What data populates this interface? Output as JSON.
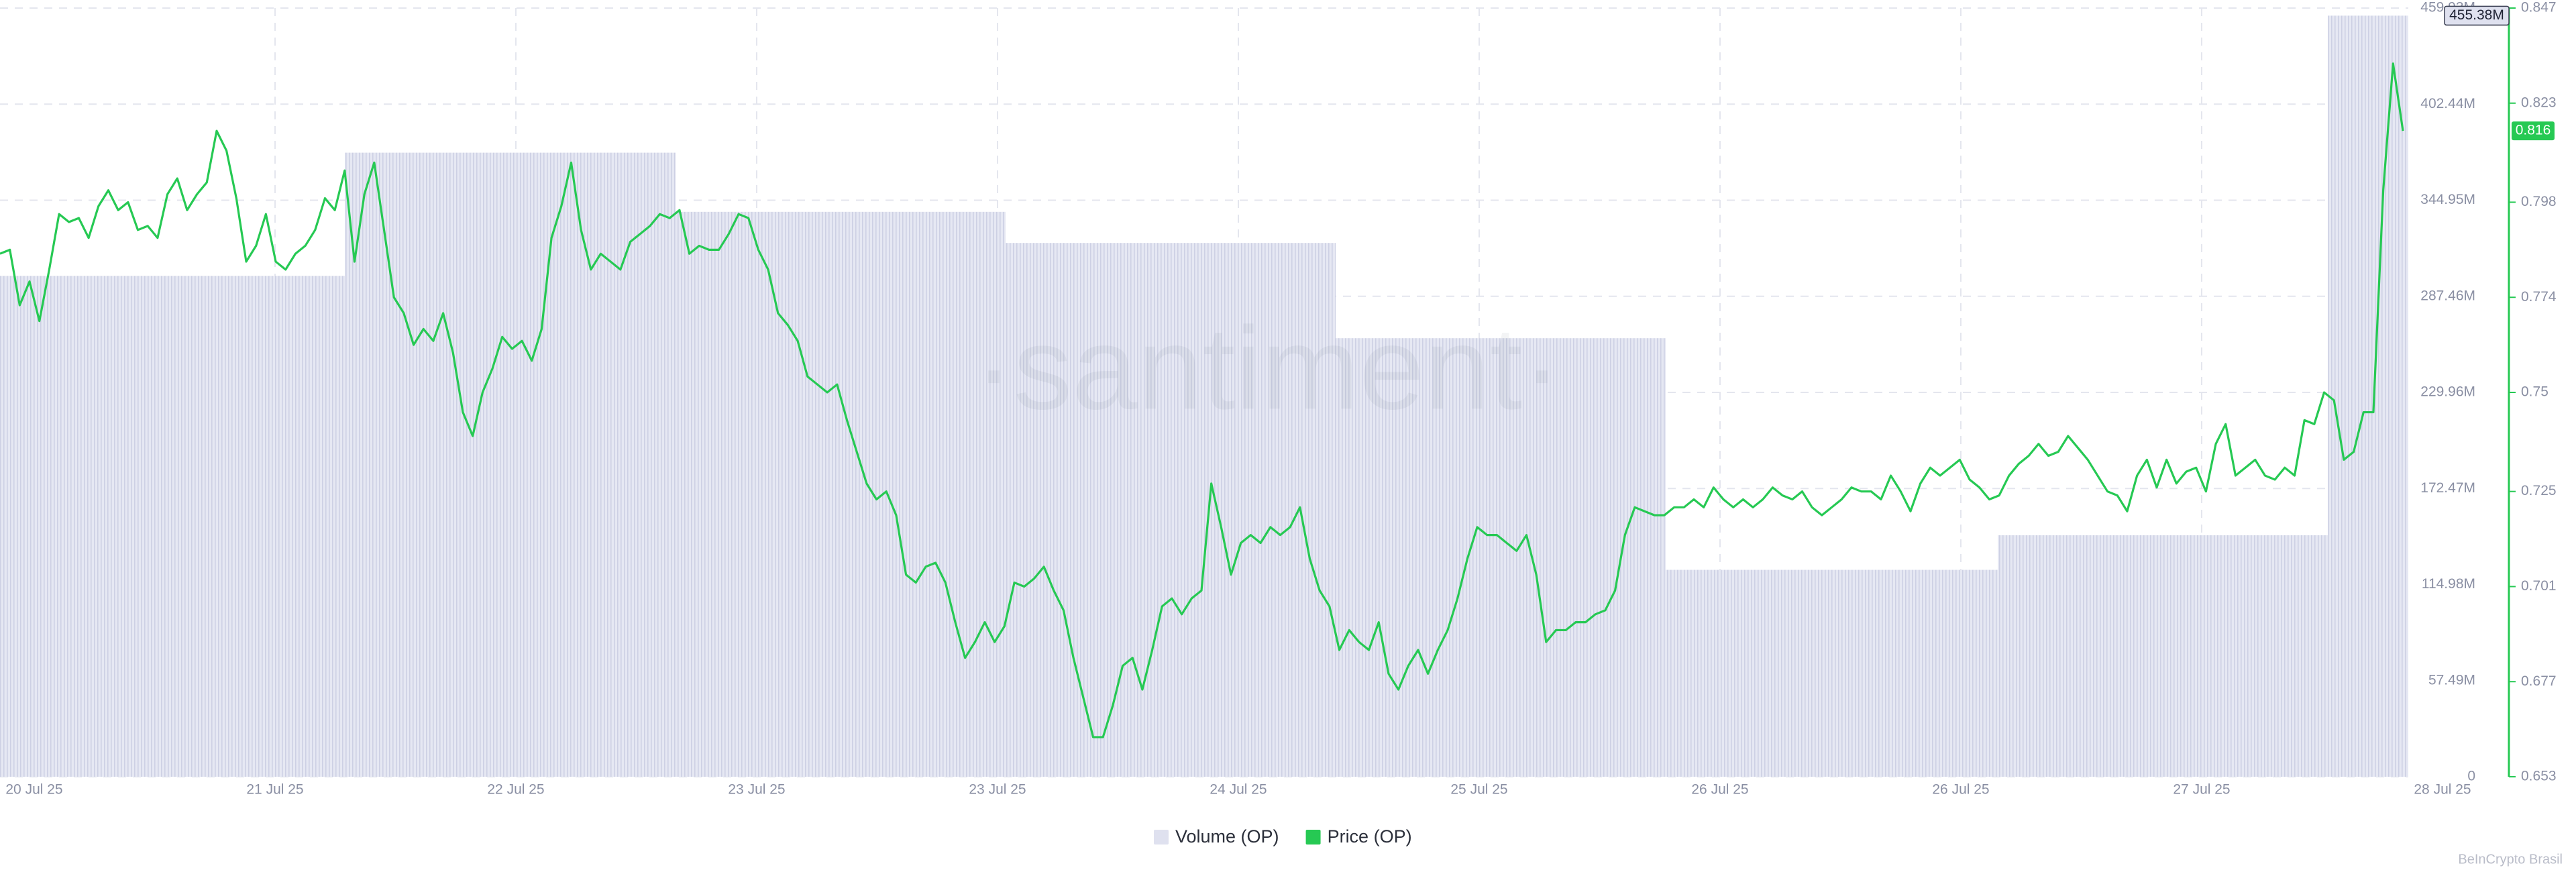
{
  "chart_data": {
    "type": "bar-line",
    "watermark": "·santiment·",
    "credit": "BeInCrypto Brasil",
    "x_labels": [
      "20 Jul 25",
      "21 Jul 25",
      "22 Jul 25",
      "23 Jul 25",
      "23 Jul 25",
      "24 Jul 25",
      "25 Jul 25",
      "26 Jul 25",
      "26 Jul 25",
      "27 Jul 25",
      "28 Jul 25"
    ],
    "ylim": [
      0,
      459930000
    ],
    "yticks": [
      0,
      {
        "value": 57491250,
        "label": "57.49M"
      },
      {
        "value": 114982500,
        "label": "114.98M"
      },
      {
        "value": 172473750,
        "label": "172.47M"
      },
      {
        "value": 229965000,
        "label": "229.96M"
      },
      {
        "value": 287456250,
        "label": "287.46M"
      },
      {
        "value": 344947500,
        "label": "344.95M"
      },
      {
        "value": 402438750,
        "label": "402.44M"
      },
      {
        "value": 459930000,
        "label": "459.93M"
      }
    ],
    "y2lim": [
      0.653,
      0.847
    ],
    "y2ticks": [
      0.653,
      0.677,
      0.701,
      0.725,
      0.75,
      0.774,
      0.798,
      0.823,
      0.847
    ],
    "grid": true,
    "series": [
      {
        "name": "Volume (OP)",
        "type": "bar",
        "color": "#dfe1ef",
        "values": [
          299700000,
          373400000,
          338000000,
          319400000,
          262400000,
          123800000,
          144500000,
          455380000
        ],
        "value_labels": [
          null,
          null,
          null,
          null,
          null,
          null,
          null,
          "455.38M"
        ]
      },
      {
        "name": "Price (OP)",
        "type": "line",
        "axis": "y2",
        "color": "#26c953",
        "values": [
          0.785,
          0.786,
          0.772,
          0.778,
          0.768,
          0.781,
          0.795,
          0.793,
          0.794,
          0.789,
          0.797,
          0.801,
          0.796,
          0.798,
          0.791,
          0.792,
          0.789,
          0.8,
          0.804,
          0.796,
          0.8,
          0.803,
          0.816,
          0.811,
          0.799,
          0.783,
          0.787,
          0.795,
          0.783,
          0.781,
          0.785,
          0.787,
          0.791,
          0.799,
          0.796,
          0.806,
          0.783,
          0.8,
          0.808,
          0.791,
          0.774,
          0.77,
          0.762,
          0.766,
          0.763,
          0.77,
          0.76,
          0.745,
          0.739,
          0.75,
          0.756,
          0.764,
          0.761,
          0.763,
          0.758,
          0.766,
          0.789,
          0.797,
          0.808,
          0.791,
          0.781,
          0.785,
          0.783,
          0.781,
          0.788,
          0.79,
          0.792,
          0.795,
          0.794,
          0.796,
          0.785,
          0.787,
          0.786,
          0.786,
          0.79,
          0.795,
          0.794,
          0.786,
          0.781,
          0.77,
          0.767,
          0.763,
          0.754,
          0.752,
          0.75,
          0.752,
          0.743,
          0.735,
          0.727,
          0.723,
          0.725,
          0.719,
          0.704,
          0.702,
          0.706,
          0.707,
          0.702,
          0.692,
          0.683,
          0.687,
          0.692,
          0.687,
          0.691,
          0.702,
          0.701,
          0.703,
          0.706,
          0.7,
          0.695,
          0.683,
          0.673,
          0.663,
          0.663,
          0.671,
          0.681,
          0.683,
          0.675,
          0.685,
          0.696,
          0.698,
          0.694,
          0.698,
          0.7,
          0.727,
          0.716,
          0.704,
          0.712,
          0.714,
          0.712,
          0.716,
          0.714,
          0.716,
          0.721,
          0.708,
          0.7,
          0.696,
          0.685,
          0.69,
          0.687,
          0.685,
          0.692,
          0.679,
          0.675,
          0.681,
          0.685,
          0.679,
          0.685,
          0.69,
          0.698,
          0.708,
          0.716,
          0.714,
          0.714,
          0.712,
          0.71,
          0.714,
          0.704,
          0.687,
          0.69,
          0.69,
          0.692,
          0.692,
          0.694,
          0.695,
          0.7,
          0.714,
          0.721,
          0.72,
          0.719,
          0.719,
          0.721,
          0.721,
          0.723,
          0.721,
          0.726,
          0.723,
          0.721,
          0.723,
          0.721,
          0.723,
          0.726,
          0.724,
          0.723,
          0.725,
          0.721,
          0.719,
          0.721,
          0.723,
          0.726,
          0.725,
          0.725,
          0.723,
          0.729,
          0.725,
          0.72,
          0.727,
          0.731,
          0.729,
          0.731,
          0.733,
          0.728,
          0.726,
          0.723,
          0.724,
          0.729,
          0.732,
          0.734,
          0.737,
          0.734,
          0.735,
          0.739,
          0.736,
          0.733,
          0.729,
          0.725,
          0.724,
          0.72,
          0.729,
          0.733,
          0.726,
          0.733,
          0.727,
          0.73,
          0.731,
          0.725,
          0.737,
          0.742,
          0.729,
          0.731,
          0.733,
          0.729,
          0.728,
          0.731,
          0.729,
          0.743,
          0.742,
          0.75,
          0.748,
          0.733,
          0.735,
          0.745,
          0.745,
          0.801,
          0.833,
          0.816
        ]
      }
    ]
  }
}
